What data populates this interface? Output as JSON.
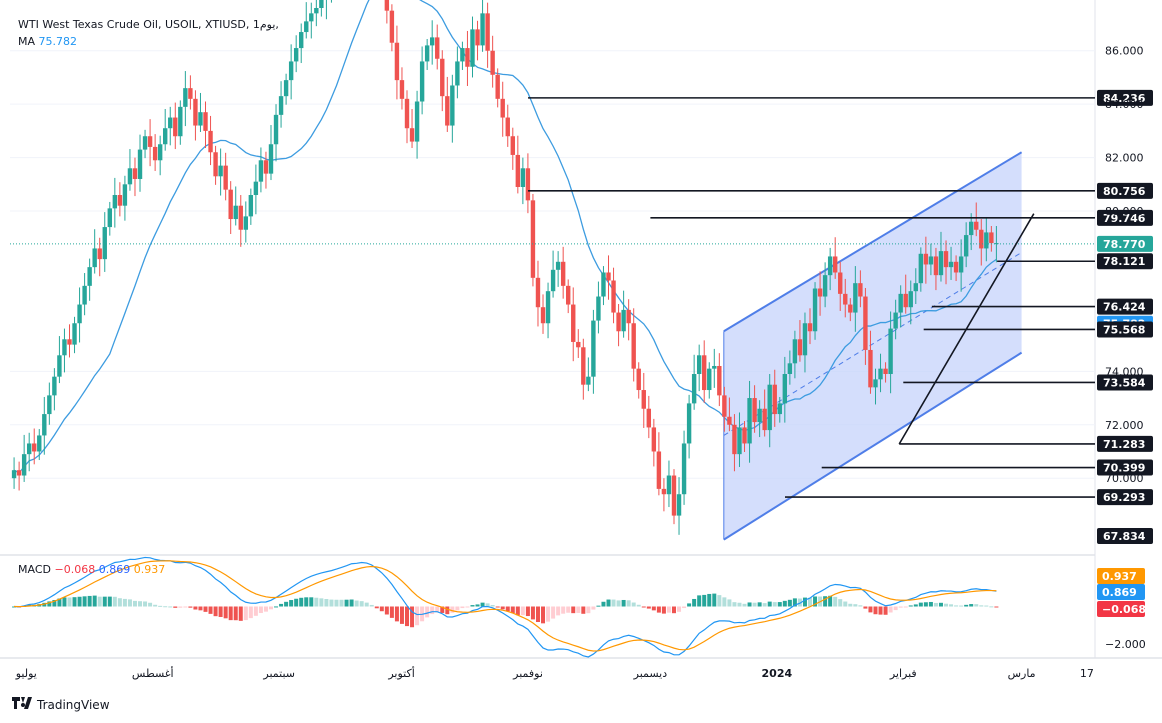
{
  "header": {
    "symbol_title": "WTI West Texas Crude Oil, USOIL, XTIUSD, 1يوم,",
    "ma_label": "MA",
    "ma_value": "75.782"
  },
  "macd_legend": {
    "label": "MACD",
    "v1": "−0.068",
    "v2": "0.869",
    "v3": "0.937"
  },
  "brand": "TradingView",
  "colors": {
    "up": "#26a69a",
    "down": "#ef5350",
    "ma": "#3d9ce0",
    "channel_fill": "#c6d3fb",
    "channel_line": "#4f7ee8",
    "macd_line": "#2196f3",
    "signal_line": "#ff9800"
  },
  "chart_data": {
    "type": "candlestick",
    "y_range": [
      67.2,
      87.6
    ],
    "y_ticks": [
      {
        "value": 86,
        "label": "86.000"
      },
      {
        "value": 84,
        "label": "84.000"
      },
      {
        "value": 82,
        "label": "82.000"
      },
      {
        "value": 80,
        "label": "80.000"
      },
      {
        "value": 74,
        "label": "74.000"
      },
      {
        "value": 72,
        "label": "72.000"
      },
      {
        "value": 70,
        "label": "70.000"
      }
    ],
    "x_labels": [
      {
        "date": "2023-07-01",
        "label": "يوليو"
      },
      {
        "date": "2023-08-01",
        "label": "أغسطس"
      },
      {
        "date": "2023-09-01",
        "label": "سبتمبر"
      },
      {
        "date": "2023-10-01",
        "label": "أكتوبر"
      },
      {
        "date": "2023-11-01",
        "label": "نوفمبر"
      },
      {
        "date": "2023-12-01",
        "label": "ديسمبر"
      },
      {
        "date": "2024-01-01",
        "label": "2024"
      },
      {
        "date": "2024-02-01",
        "label": "فبراير"
      },
      {
        "date": "2024-03-01",
        "label": "مارس"
      },
      {
        "date": "2024-03-17",
        "label": "17"
      }
    ],
    "closes": [
      70.3,
      70.1,
      70.9,
      71.3,
      71.0,
      71.6,
      72.4,
      73.1,
      73.8,
      74.6,
      75.2,
      75.0,
      75.8,
      76.5,
      77.2,
      77.9,
      78.6,
      78.2,
      79.4,
      80.1,
      80.6,
      80.2,
      81.0,
      81.6,
      81.2,
      82.3,
      82.8,
      82.4,
      81.9,
      82.5,
      83.1,
      83.5,
      82.8,
      83.9,
      84.6,
      84.2,
      83.2,
      83.7,
      83.0,
      82.2,
      81.3,
      81.7,
      80.8,
      79.7,
      80.2,
      79.3,
      79.8,
      80.6,
      81.1,
      81.9,
      81.4,
      82.5,
      83.6,
      84.3,
      84.9,
      85.6,
      86.1,
      86.7,
      87.1,
      87.4,
      87.6,
      87.9,
      88.2,
      88.6,
      89.3,
      89.9,
      90.5,
      91.2,
      90.8,
      91.4,
      91.0,
      90.3,
      89.1,
      88.6,
      87.5,
      86.3,
      84.9,
      84.2,
      83.1,
      82.6,
      84.1,
      85.6,
      86.2,
      86.5,
      85.7,
      84.3,
      83.2,
      84.7,
      85.6,
      86.1,
      85.4,
      86.8,
      86.2,
      87.4,
      86.0,
      85.1,
      84.2,
      83.5,
      82.8,
      82.1,
      80.9,
      81.6,
      80.4,
      77.5,
      76.4,
      75.8,
      77.0,
      77.8,
      78.1,
      77.2,
      76.5,
      75.1,
      74.9,
      73.5,
      73.8,
      75.9,
      76.8,
      77.7,
      77.4,
      76.2,
      75.5,
      76.3,
      75.8,
      74.1,
      73.3,
      72.6,
      71.9,
      71.0,
      69.6,
      69.4,
      70.1,
      68.6,
      69.4,
      71.3,
      72.8,
      73.9,
      74.6,
      73.3,
      74.1,
      74.2,
      73.1,
      72.3,
      72.0,
      70.9,
      71.9,
      71.3,
      73.0,
      72.1,
      72.6,
      71.8,
      73.5,
      72.4,
      72.8,
      73.9,
      74.3,
      75.2,
      74.6,
      75.8,
      75.5,
      77.1,
      76.8,
      77.6,
      78.3,
      77.7,
      76.9,
      76.5,
      76.2,
      77.3,
      76.8,
      74.8,
      73.4,
      73.7,
      74.1,
      73.9,
      75.6,
      76.2,
      76.9,
      76.4,
      77.0,
      77.3,
      78.4,
      78.0,
      78.3,
      77.6,
      78.5,
      77.9,
      78.1,
      77.7,
      78.3,
      79.1,
      79.6,
      79.3,
      78.6,
      79.2,
      78.8,
      78.8
    ],
    "candle_x_start": "2023-06-28",
    "candle_x_step_days": 1.235,
    "ma": {
      "label": "MA",
      "value": 75.782
    },
    "channel": {
      "upper": [
        {
          "date": "2023-12-19",
          "value": 75.5
        },
        {
          "date": "2024-03-01",
          "value": 82.2
        }
      ],
      "lower": [
        {
          "date": "2023-12-19",
          "value": 67.7
        },
        {
          "date": "2024-03-01",
          "value": 74.7
        }
      ],
      "mid": [
        {
          "date": "2023-12-19",
          "value": 71.6
        },
        {
          "date": "2024-03-01",
          "value": 78.45
        }
      ]
    },
    "trendline": [
      {
        "date": "2024-01-31",
        "value": 71.28
      },
      {
        "date": "2024-03-04",
        "value": 79.9
      }
    ],
    "price_levels": [
      {
        "value": 84.236,
        "label": "84.236",
        "start": "2023-11-01",
        "style": "dark"
      },
      {
        "value": 80.756,
        "label": "80.756",
        "start": "2023-11-01",
        "style": "dark"
      },
      {
        "value": 79.746,
        "label": "79.746",
        "start": "2023-12-01",
        "style": "dark"
      },
      {
        "value": 78.121,
        "label": "78.121",
        "start": "2024-02-24",
        "style": "dark"
      },
      {
        "value": 76.424,
        "label": "76.424",
        "start": "2024-02-08",
        "style": "dark"
      },
      {
        "value": 75.782,
        "label": "75.782",
        "start": null,
        "style": "ma"
      },
      {
        "value": 75.568,
        "label": "75.568",
        "start": "2024-02-06",
        "style": "dark"
      },
      {
        "value": 73.584,
        "label": "73.584",
        "start": "2024-02-01",
        "style": "dark"
      },
      {
        "value": 71.283,
        "label": "71.283",
        "start": "2024-01-31",
        "style": "dark"
      },
      {
        "value": 70.399,
        "label": "70.399",
        "start": "2024-01-12",
        "style": "dark"
      },
      {
        "value": 69.293,
        "label": "69.293",
        "start": "2024-01-03",
        "style": "dark"
      },
      {
        "value": 67.834,
        "label": "67.834",
        "start": null,
        "style": "dark"
      }
    ],
    "current_price": {
      "value": 78.77,
      "label": "78.770"
    },
    "macd": {
      "y_range": [
        -2.6,
        2.6
      ],
      "y_tick": {
        "value": -2,
        "label": "−2.000"
      },
      "labels": [
        {
          "value": 0.937,
          "label": "0.937",
          "style": "orange"
        },
        {
          "value": 0.869,
          "label": "0.869",
          "style": "blue"
        },
        {
          "value": -0.068,
          "label": "−0.068",
          "style": "red"
        }
      ]
    }
  }
}
